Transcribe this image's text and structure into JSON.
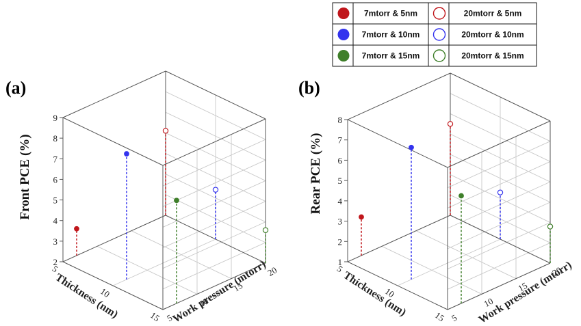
{
  "legend": {
    "entries": [
      {
        "label": "7mtorr & 5nm",
        "color": "#c0161b",
        "filled": true
      },
      {
        "label": "20mtorr & 5nm",
        "color": "#c0161b",
        "filled": false
      },
      {
        "label": "7mtorr & 10nm",
        "color": "#3333ee",
        "filled": true
      },
      {
        "label": "20mtorr & 10nm",
        "color": "#3333ee",
        "filled": false
      },
      {
        "label": "7mtorr & 15nm",
        "color": "#3f7f2a",
        "filled": true
      },
      {
        "label": "20mtorr & 15nm",
        "color": "#3f7f2a",
        "filled": false
      }
    ]
  },
  "chart_data": [
    {
      "type": "scatter",
      "panel": "(a)",
      "zlabel": "Front PCE (%)",
      "xlabel": "Thickness (nm)",
      "ylabel": "Work pressure (mtorr)",
      "x_ticks": [
        "5",
        "10",
        "15"
      ],
      "y_ticks": [
        "5",
        "10",
        "15",
        "20"
      ],
      "z_ticks": [
        "2",
        "3",
        "4",
        "5",
        "6",
        "7",
        "8",
        "9"
      ],
      "xlim": [
        5,
        15
      ],
      "ylim": [
        5,
        20
      ],
      "zlim": [
        2,
        9
      ],
      "points": [
        {
          "thickness": 5,
          "pressure": 7,
          "pce": 3.3,
          "series": "7mtorr & 5nm"
        },
        {
          "thickness": 10,
          "pressure": 7,
          "pce": 8.1,
          "series": "7mtorr & 10nm"
        },
        {
          "thickness": 15,
          "pressure": 7,
          "pce": 7.0,
          "series": "7mtorr & 15nm"
        },
        {
          "thickness": 5,
          "pressure": 20,
          "pce": 6.1,
          "series": "20mtorr & 5nm"
        },
        {
          "thickness": 10,
          "pressure": 20,
          "pce": 4.4,
          "series": "20mtorr & 10nm"
        },
        {
          "thickness": 15,
          "pressure": 20,
          "pce": 3.6,
          "series": "20mtorr & 15nm"
        }
      ]
    },
    {
      "type": "scatter",
      "panel": "(b)",
      "zlabel": "Rear PCE (%)",
      "xlabel": "Thickness (nm)",
      "ylabel": "Work pressure (mtorr)",
      "x_ticks": [
        "5",
        "10",
        "15"
      ],
      "y_ticks": [
        "5",
        "10",
        "15",
        "20"
      ],
      "z_ticks": [
        "1",
        "2",
        "3",
        "4",
        "5",
        "6",
        "7",
        "8"
      ],
      "xlim": [
        5,
        15
      ],
      "ylim": [
        5,
        20
      ],
      "zlim": [
        1,
        8
      ],
      "points": [
        {
          "thickness": 5,
          "pressure": 7,
          "pce": 2.9,
          "series": "7mtorr & 5nm"
        },
        {
          "thickness": 10,
          "pressure": 7,
          "pce": 7.5,
          "series": "7mtorr & 10nm"
        },
        {
          "thickness": 15,
          "pressure": 7,
          "pce": 6.3,
          "series": "7mtorr & 15nm"
        },
        {
          "thickness": 5,
          "pressure": 20,
          "pce": 5.5,
          "series": "20mtorr & 5nm"
        },
        {
          "thickness": 10,
          "pressure": 20,
          "pce": 3.3,
          "series": "20mtorr & 10nm"
        },
        {
          "thickness": 15,
          "pressure": 20,
          "pce": 2.8,
          "series": "20mtorr & 15nm"
        }
      ]
    }
  ]
}
